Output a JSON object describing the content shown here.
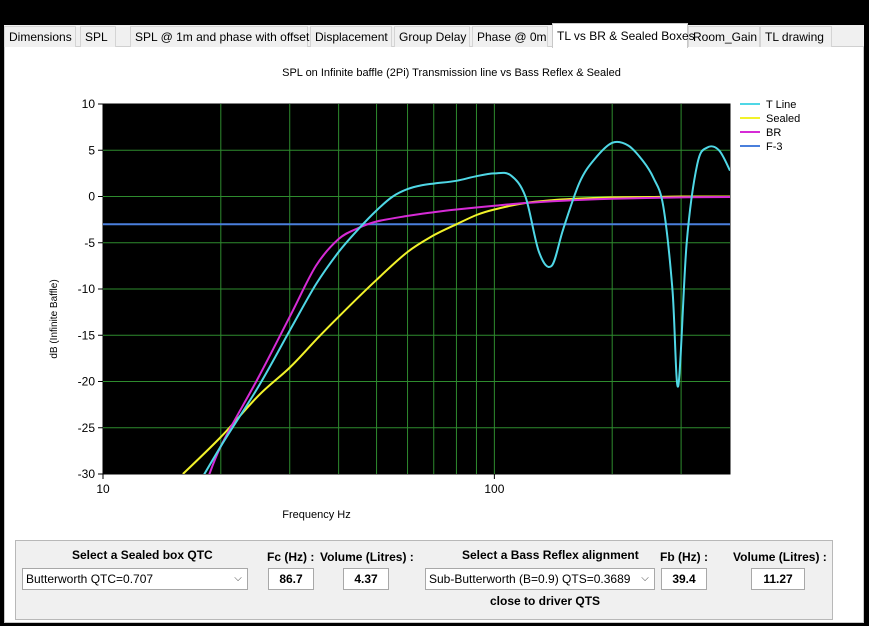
{
  "tabs": [
    {
      "label": "Dimensions",
      "active": false
    },
    {
      "label": "SPL",
      "active": false
    },
    {
      "label": "SPL @ 1m and phase with offset",
      "active": false
    },
    {
      "label": "Displacement",
      "active": false
    },
    {
      "label": "Group Delay",
      "active": false
    },
    {
      "label": "Phase @ 0m",
      "active": false
    },
    {
      "label": "TL vs BR & Sealed Boxes",
      "active": true
    },
    {
      "label": "Room_Gain",
      "active": false
    },
    {
      "label": "TL drawing",
      "active": false
    }
  ],
  "controls": {
    "sealed_label": "Select a Sealed box QTC",
    "sealed_value": "Butterworth QTC=0.707",
    "fc_label": "Fc (Hz) :",
    "fc_value": "86.7",
    "sealed_volume_label": "Volume (Litres) :",
    "sealed_volume_value": "4.37",
    "br_label": "Select a Bass Reflex alignment",
    "br_value": "Sub-Butterworth (B=0.9) QTS=0.3689",
    "br_note": "close to driver QTS",
    "fb_label": "Fb (Hz) :",
    "fb_value": "39.4",
    "br_volume_label": "Volume (Litres) :",
    "br_volume_value": "11.27"
  },
  "chart_data": {
    "type": "line",
    "title": "SPL on Infinite baffle (2Pi) Transmission line vs Bass Reflex & Sealed",
    "xlabel": "Frequency Hz",
    "ylabel": "dB (Infinite Baffle)",
    "x_scale": "log",
    "xlim": [
      10,
      400
    ],
    "ylim": [
      -30,
      10
    ],
    "x_ticks": [
      "10",
      "100"
    ],
    "y_ticks": [
      "10",
      "5",
      "0",
      "-5",
      "-10",
      "-15",
      "-20",
      "-25",
      "-30"
    ],
    "grid": true,
    "background": "#000000",
    "grid_color": "#2e8b2e",
    "legend_position": "right",
    "series": [
      {
        "name": "T Line",
        "color": "#4fd7e6",
        "x": [
          16,
          20,
          25,
          30,
          35,
          40,
          45,
          50,
          55,
          60,
          65,
          70,
          80,
          90,
          100,
          110,
          120,
          130,
          140,
          150,
          165,
          180,
          200,
          220,
          240,
          255,
          270,
          285,
          295,
          310,
          330,
          350,
          375,
          400
        ],
        "y": [
          -34,
          -27,
          -20.5,
          -14.5,
          -9.5,
          -6,
          -3.5,
          -1.5,
          0,
          0.8,
          1.2,
          1.4,
          1.7,
          2.2,
          2.5,
          2.3,
          0,
          -6,
          -7.5,
          -3.5,
          1.5,
          4,
          5.8,
          5.5,
          3.8,
          2,
          -1,
          -10,
          -20.5,
          -5,
          3.5,
          5.3,
          5,
          2.8
        ]
      },
      {
        "name": "Sealed",
        "color": "#f2f22a",
        "x": [
          16,
          20,
          25,
          30,
          35,
          40,
          50,
          60,
          70,
          80,
          90,
          100,
          120,
          140,
          160,
          200,
          250,
          300,
          400
        ],
        "y": [
          -30,
          -26,
          -21.5,
          -18.5,
          -15.5,
          -13,
          -9,
          -6,
          -4.2,
          -3,
          -2,
          -1.4,
          -0.7,
          -0.4,
          -0.25,
          -0.1,
          -0.05,
          0,
          0
        ]
      },
      {
        "name": "BR",
        "color": "#d62bd6",
        "x": [
          18,
          20,
          25,
          30,
          35,
          40,
          45,
          50,
          60,
          70,
          80,
          100,
          120,
          150,
          200,
          300,
          400
        ],
        "y": [
          -32,
          -27,
          -19.5,
          -13,
          -7.5,
          -4.6,
          -3.4,
          -2.7,
          -2.1,
          -1.7,
          -1.4,
          -1.0,
          -0.7,
          -0.45,
          -0.25,
          -0.1,
          -0.05
        ]
      },
      {
        "name": "F-3",
        "color": "#4a7fdc",
        "x": [
          10,
          400
        ],
        "y": [
          -3,
          -3
        ]
      }
    ]
  }
}
